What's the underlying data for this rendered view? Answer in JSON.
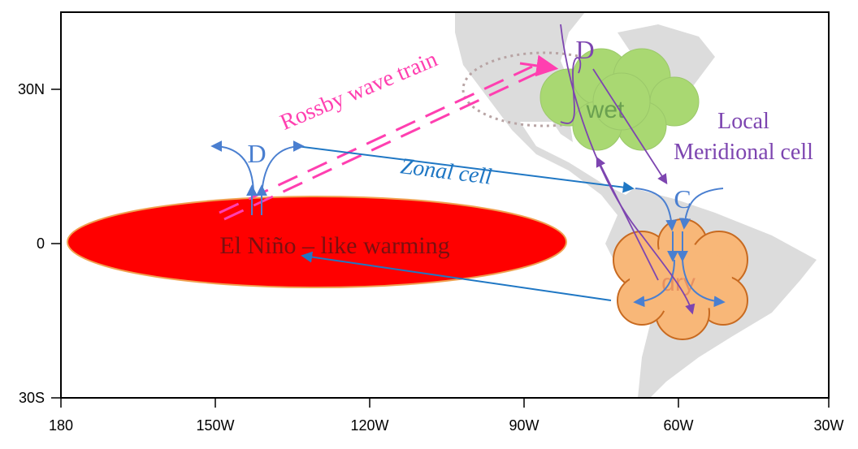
{
  "x_axis": {
    "ticks": [
      "180",
      "150W",
      "120W",
      "90W",
      "60W",
      "30W"
    ]
  },
  "y_axis": {
    "ticks": [
      "30N",
      "0",
      "30S"
    ]
  },
  "labels": {
    "rossby": "Rossby wave train",
    "zonal": "Zonal cell",
    "local": "Local",
    "meridional": "Meridional cell",
    "warming": "El Niño – like warming",
    "wet": "wet",
    "dry": "dry",
    "d_west": "D",
    "d_east": "D",
    "c": "C"
  }
}
